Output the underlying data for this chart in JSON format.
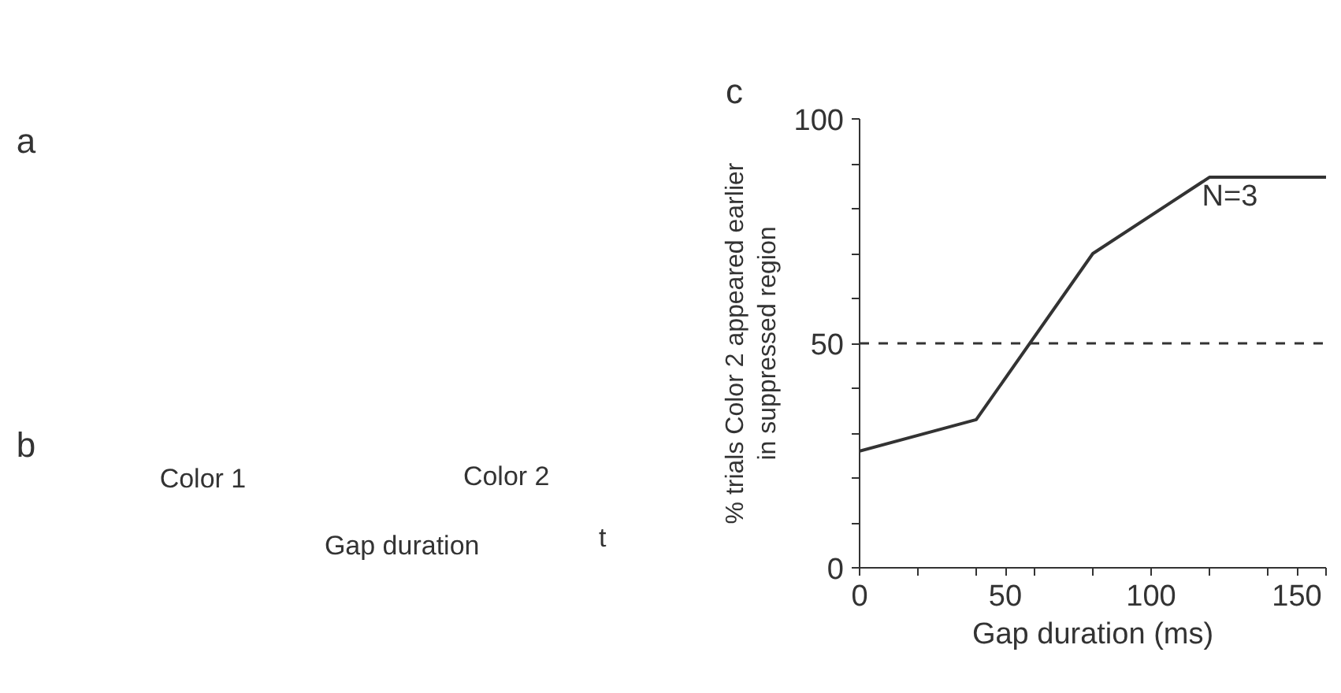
{
  "chart_data": [
    {
      "type": "other",
      "annotations": [
        "a",
        "b",
        "Color 1",
        "Color 2",
        "Gap duration",
        "t"
      ]
    },
    {
      "type": "line",
      "title": "c",
      "xlabel": "Gap duration (ms)",
      "ylabel": "% trials Color 2 appeared earlier\nin suppressed region",
      "x": [
        0,
        40,
        80,
        120,
        160
      ],
      "series": [
        {
          "color": "#333333",
          "values": [
            26,
            33,
            70,
            87,
            87
          ]
        }
      ],
      "xlim": [
        0,
        160
      ],
      "ylim": [
        0,
        100
      ],
      "xticks": [
        0,
        {
          "value": 20,
          "label": null
        },
        {
          "value": 40,
          "label": null
        },
        50,
        {
          "value": 60,
          "label": null
        },
        {
          "value": 80,
          "label": null
        },
        100,
        {
          "value": 120,
          "label": null
        },
        {
          "value": 140,
          "label": null
        },
        150,
        {
          "value": 160,
          "label": null
        }
      ],
      "yticks": [
        0,
        {
          "value": 10,
          "label": null
        },
        {
          "value": 20,
          "label": null
        },
        {
          "value": 30,
          "label": null
        },
        {
          "value": 40,
          "label": null
        },
        50,
        {
          "value": 60,
          "label": null
        },
        {
          "value": 70,
          "label": null
        },
        {
          "value": 80,
          "label": null
        },
        {
          "value": 90,
          "label": null
        },
        100
      ],
      "ref_lines": [
        {
          "axis": "y",
          "value": 50,
          "line_style": "dashed",
          "color": "#333333"
        }
      ],
      "annotations": [
        "N=3"
      ],
      "grid": false,
      "line_style": "solid",
      "marker": "none"
    }
  ]
}
